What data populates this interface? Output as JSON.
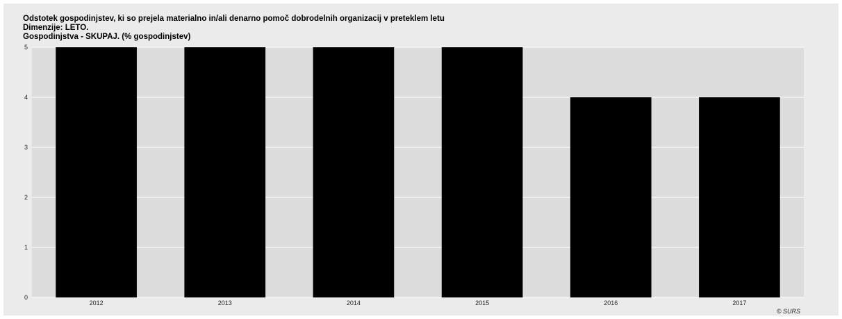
{
  "title": "Odstotek gospodinjstev, ki so prejela materialno in/ali denarno pomoč dobrodelnih organizacij v preteklem letu",
  "subtitle1": "Dimenzije: LETO.",
  "subtitle2": "Gospodinjstva - SKUPAJ. (% gospodinjstev)",
  "credit": "© SURS",
  "chart_data": {
    "type": "bar",
    "categories": [
      "2012",
      "2013",
      "2014",
      "2015",
      "2016",
      "2017"
    ],
    "values": [
      5,
      5,
      5,
      5,
      4,
      4
    ],
    "ylim": [
      0,
      5
    ],
    "yticks": [
      0,
      1,
      2,
      3,
      4,
      5
    ],
    "bar_color": "#000000",
    "plot_background": "#dcdcdc",
    "grid": true
  }
}
